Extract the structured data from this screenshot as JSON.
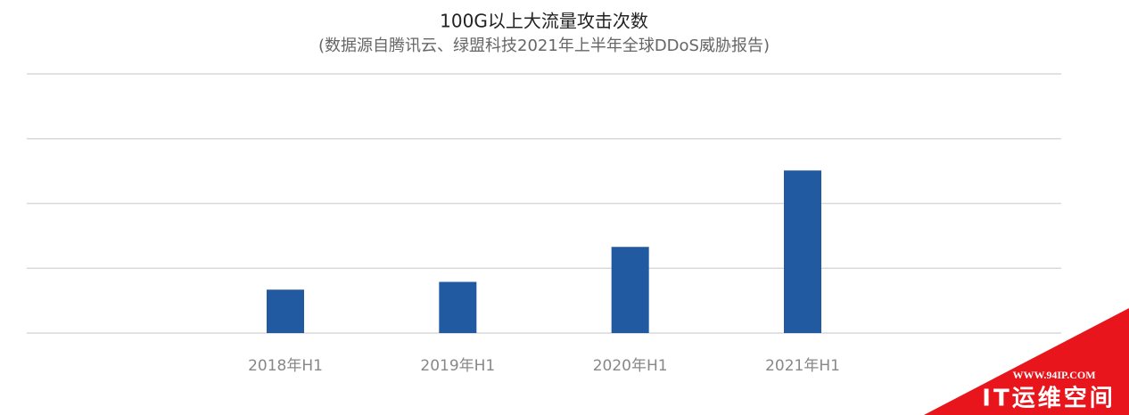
{
  "chart_data": {
    "type": "bar",
    "title": "100G以上大流量攻击次数",
    "subtitle": "(数据源自腾讯云、绿盟科技2021年上半年全球DDoS威胁报告)",
    "categories": [
      "2018年H1",
      "2019年H1",
      "2020年H1",
      "2021年H1"
    ],
    "values": [
      0.67,
      0.79,
      1.33,
      2.51
    ],
    "color": "#215aa0",
    "ylim": [
      0,
      4
    ],
    "yticks": [
      0,
      1,
      2,
      3,
      4
    ],
    "grid": true
  },
  "watermark": {
    "url": "WWW.94IP.COM",
    "name": "IT运维空间"
  }
}
